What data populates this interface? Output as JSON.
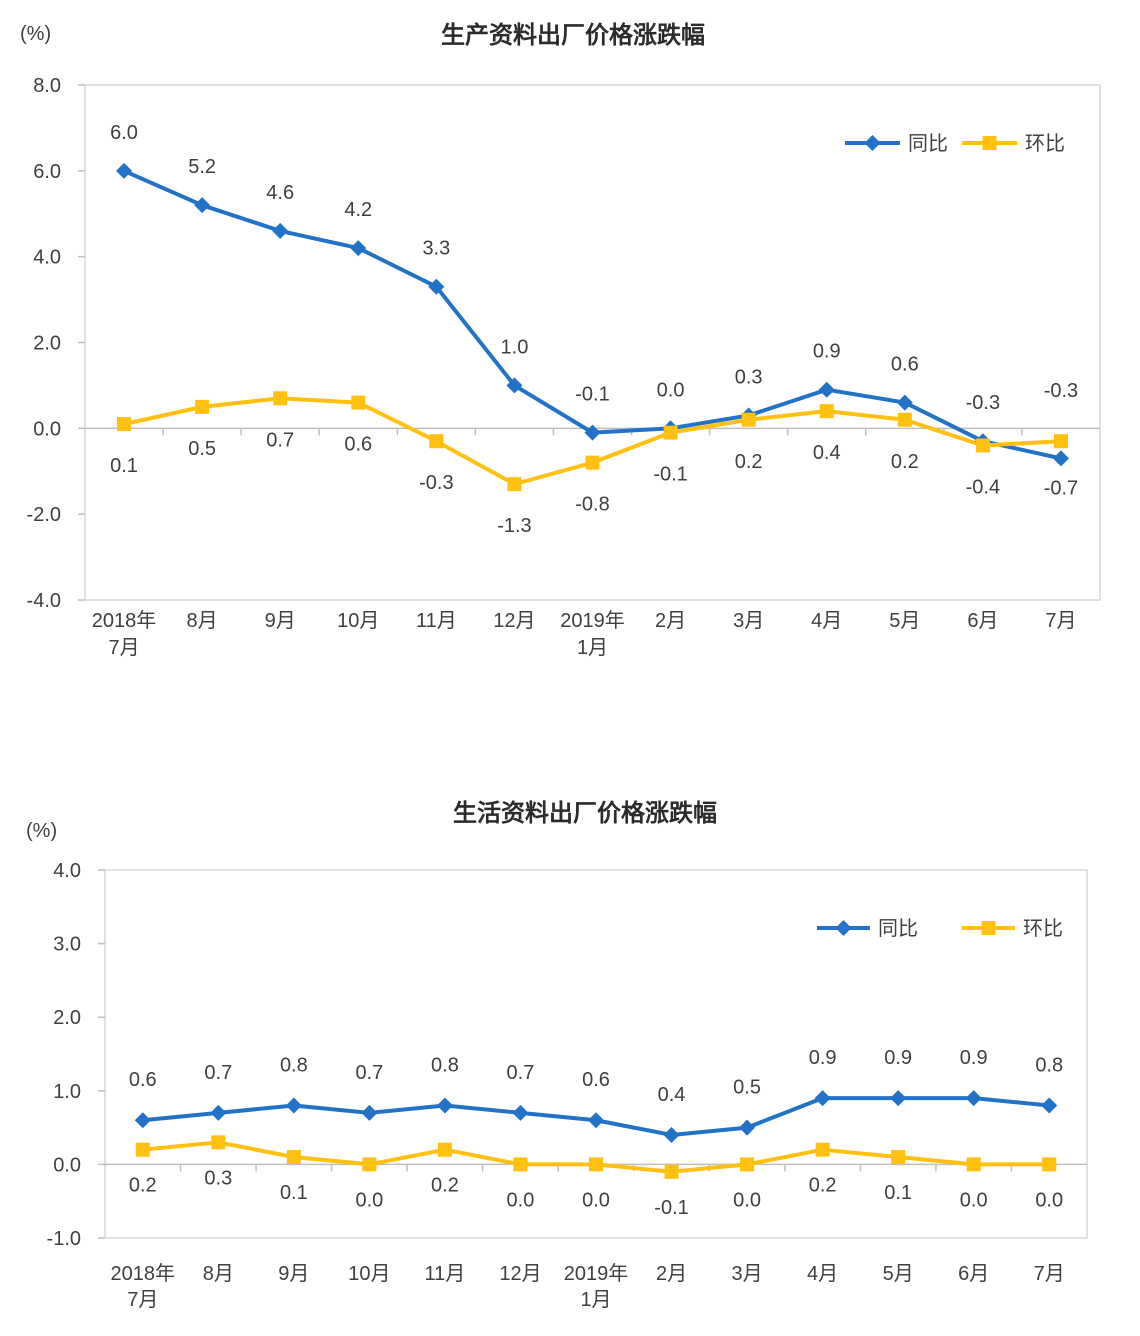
{
  "chart_data": [
    {
      "type": "line",
      "title": "生产资料出厂价格涨跌幅",
      "unit_label": "(%)",
      "categories": [
        "2018年7月",
        "8月",
        "9月",
        "10月",
        "11月",
        "12月",
        "2019年1月",
        "2月",
        "3月",
        "4月",
        "5月",
        "6月",
        "7月"
      ],
      "categories_display": [
        [
          "2018年",
          "7月"
        ],
        [
          "8月"
        ],
        [
          "9月"
        ],
        [
          "10月"
        ],
        [
          "11月"
        ],
        [
          "12月"
        ],
        [
          "2019年",
          "1月"
        ],
        [
          "2月"
        ],
        [
          "3月"
        ],
        [
          "4月"
        ],
        [
          "5月"
        ],
        [
          "6月"
        ],
        [
          "7月"
        ]
      ],
      "series": [
        {
          "name": "同比",
          "color": "#2272C8",
          "marker": "diamond",
          "values": [
            6.0,
            5.2,
            4.6,
            4.2,
            3.3,
            1.0,
            -0.1,
            0.0,
            0.3,
            0.9,
            0.6,
            -0.3,
            -0.7
          ],
          "labels": [
            "6.0",
            "5.2",
            "4.6",
            "4.2",
            "3.3",
            "1.0",
            "-0.1",
            "0.0",
            "0.3",
            "0.9",
            "0.6",
            "-0.3",
            "-0.7"
          ]
        },
        {
          "name": "环比",
          "color": "#FFC010",
          "marker": "square",
          "values": [
            0.1,
            0.5,
            0.7,
            0.6,
            -0.3,
            -1.3,
            -0.8,
            -0.1,
            0.2,
            0.4,
            0.2,
            -0.4,
            -0.3
          ],
          "labels": [
            "0.1",
            "0.5",
            "0.7",
            "0.6",
            "-0.3",
            "-1.3",
            "-0.8",
            "-0.1",
            "0.2",
            "0.4",
            "0.2",
            "-0.4",
            "-0.3"
          ]
        }
      ],
      "ylim": [
        -4.0,
        8.0
      ],
      "ytick_labels": [
        "8.0",
        "6.0",
        "4.0",
        "2.0",
        "0.0",
        "-2.0",
        "-4.0"
      ],
      "grid": "zero-line-only",
      "legend_position": "top-right-inside"
    },
    {
      "type": "line",
      "title": "生活资料出厂价格涨跌幅",
      "unit_label": "(%)",
      "categories": [
        "2018年7月",
        "8月",
        "9月",
        "10月",
        "11月",
        "12月",
        "2019年1月",
        "2月",
        "3月",
        "4月",
        "5月",
        "6月",
        "7月"
      ],
      "categories_display": [
        [
          "2018年",
          "7月"
        ],
        [
          "8月"
        ],
        [
          "9月"
        ],
        [
          "10月"
        ],
        [
          "11月"
        ],
        [
          "12月"
        ],
        [
          "2019年",
          "1月"
        ],
        [
          "2月"
        ],
        [
          "3月"
        ],
        [
          "4月"
        ],
        [
          "5月"
        ],
        [
          "6月"
        ],
        [
          "7月"
        ]
      ],
      "series": [
        {
          "name": "同比",
          "color": "#2272C8",
          "marker": "diamond",
          "values": [
            0.6,
            0.7,
            0.8,
            0.7,
            0.8,
            0.7,
            0.6,
            0.4,
            0.5,
            0.9,
            0.9,
            0.9,
            0.8
          ],
          "labels": [
            "0.6",
            "0.7",
            "0.8",
            "0.7",
            "0.8",
            "0.7",
            "0.6",
            "0.4",
            "0.5",
            "0.9",
            "0.9",
            "0.9",
            "0.8"
          ]
        },
        {
          "name": "环比",
          "color": "#FFC010",
          "marker": "square",
          "values": [
            0.2,
            0.3,
            0.1,
            0.0,
            0.2,
            0.0,
            0.0,
            -0.1,
            0.0,
            0.2,
            0.1,
            0.0,
            0.0
          ],
          "labels": [
            "0.2",
            "0.3",
            "0.1",
            "0.0",
            "0.2",
            "0.0",
            "0.0",
            "-0.1",
            "0.0",
            "0.2",
            "0.1",
            "0.0",
            "0.0"
          ]
        }
      ],
      "ylim": [
        -1.0,
        4.0
      ],
      "ytick_labels": [
        "4.0",
        "3.0",
        "2.0",
        "1.0",
        "0.0",
        "-1.0"
      ],
      "grid": "zero-line-only",
      "legend_position": "top-right-inside"
    }
  ]
}
